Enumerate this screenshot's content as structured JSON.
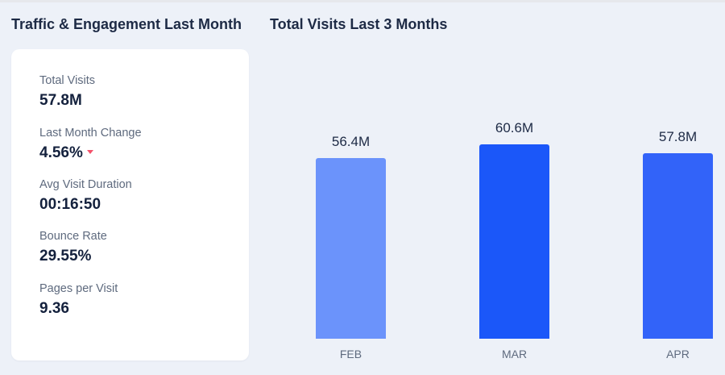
{
  "headings": {
    "left": "Traffic & Engagement Last Month",
    "right": "Total Visits Last 3 Months"
  },
  "metrics": [
    {
      "label": "Total Visits",
      "value": "57.8M"
    },
    {
      "label": "Last Month Change",
      "value": "4.56%",
      "trend": "down",
      "trend_icon": "caret-down-icon",
      "trend_color": "#f4526a"
    },
    {
      "label": "Avg Visit Duration",
      "value": "00:16:50"
    },
    {
      "label": "Bounce Rate",
      "value": "29.55%"
    },
    {
      "label": "Pages per Visit",
      "value": "9.36"
    }
  ],
  "colors": {
    "background": "#edf1f8",
    "card": "#ffffff",
    "text_dark": "#14213d",
    "text_muted": "#5e6a7e"
  },
  "chart_data": {
    "type": "bar",
    "categories": [
      "FEB",
      "MAR",
      "APR"
    ],
    "values": [
      56.4,
      60.6,
      57.8
    ],
    "value_labels": [
      "56.4M",
      "60.6M",
      "57.8M"
    ],
    "bar_colors": [
      "#6b93fb",
      "#1b57f9",
      "#3263f9"
    ],
    "unit": "M",
    "title": "Total Visits Last 3 Months",
    "xlabel": "",
    "ylabel": "",
    "grid": false,
    "legend": "none"
  }
}
